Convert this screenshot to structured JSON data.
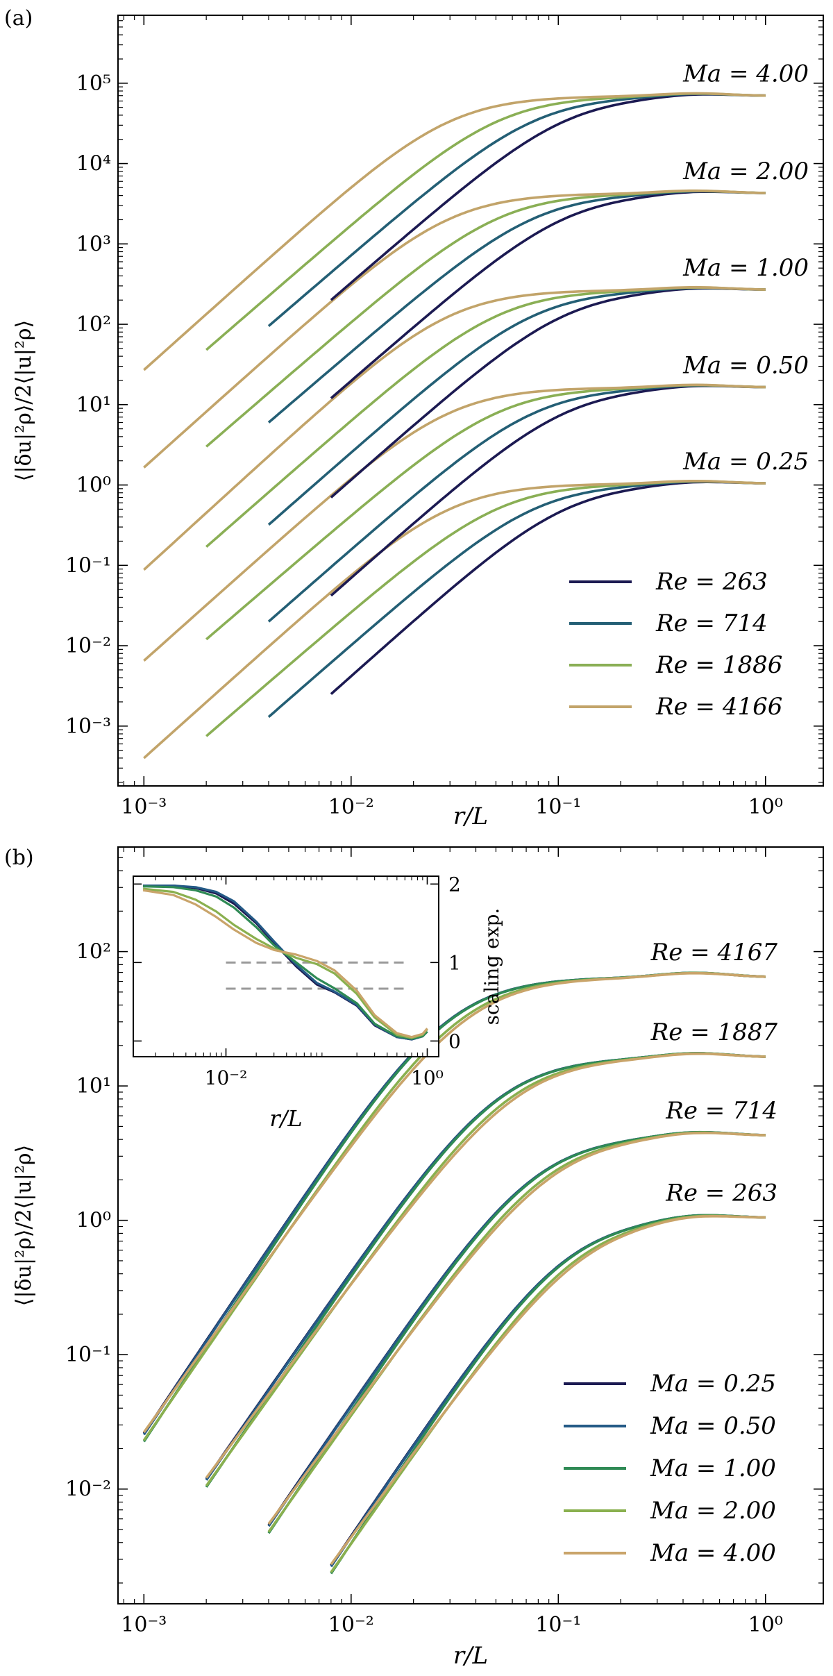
{
  "colors": {
    "c263": "#1c1a52",
    "c714": "#245f75",
    "c1886": "#8aaf55",
    "c4166": "#c2a46a",
    "ma025": "#1c1a52",
    "ma050": "#245a86",
    "ma100": "#2f8a55",
    "ma200": "#8ab04f",
    "ma400": "#c9a46a",
    "ref": "#9a9a9a"
  },
  "chart_data": [
    {
      "type": "line",
      "panel_label": "(a)",
      "xscale": "log",
      "yscale": "log",
      "xlabel": "r/L",
      "ylabel": "⟨|δu|²ρ⟩/2⟨|u|²ρ⟩",
      "xlim": [
        0.00075,
        1.9
      ],
      "ylim": [
        0.00018,
        700000
      ],
      "xticks": [
        {
          "v": 0.001,
          "label": "10⁻³"
        },
        {
          "v": 0.01,
          "label": "10⁻²"
        },
        {
          "v": 0.1,
          "label": "10⁻¹"
        },
        {
          "v": 1,
          "label": "10⁰"
        }
      ],
      "yticks": [
        {
          "v": 0.001,
          "label": "10⁻³"
        },
        {
          "v": 0.01,
          "label": "10⁻²"
        },
        {
          "v": 0.1,
          "label": "10⁻¹"
        },
        {
          "v": 1,
          "label": "10⁰"
        },
        {
          "v": 10,
          "label": "10¹"
        },
        {
          "v": 100,
          "label": "10²"
        },
        {
          "v": 1000,
          "label": "10³"
        },
        {
          "v": 10000,
          "label": "10⁴"
        },
        {
          "v": 100000,
          "label": "10⁵"
        }
      ],
      "group_labels": [
        {
          "text": "Ma = 4.00",
          "group": 4
        },
        {
          "text": "Ma = 2.00",
          "group": 3
        },
        {
          "text": "Ma = 1.00",
          "group": 2
        },
        {
          "text": "Ma = 0.50",
          "group": 1
        },
        {
          "text": "Ma = 0.25",
          "group": 0
        }
      ],
      "groups": [
        {
          "name": "Ma = 0.25",
          "plateau": 1.05,
          "curves": [
            {
              "re": "263",
              "rmin": 0.008,
              "ymin": 0.0025,
              "rc": 0.11,
              "color": "c263"
            },
            {
              "re": "714",
              "rmin": 0.004,
              "ymin": 0.0013,
              "rc": 0.078,
              "color": "c714"
            },
            {
              "re": "1886",
              "rmin": 0.002,
              "ymin": 0.00075,
              "rc": 0.052,
              "color": "c1886"
            },
            {
              "re": "4166",
              "rmin": 0.001,
              "ymin": 0.0004,
              "rc": 0.03,
              "color": "c4166"
            }
          ]
        },
        {
          "name": "Ma = 0.50",
          "plateau": 16.5,
          "curves": [
            {
              "re": "263",
              "rmin": 0.008,
              "ymin": 0.042,
              "rc": 0.11,
              "color": "c263"
            },
            {
              "re": "714",
              "rmin": 0.004,
              "ymin": 0.02,
              "rc": 0.078,
              "color": "c714"
            },
            {
              "re": "1886",
              "rmin": 0.002,
              "ymin": 0.012,
              "rc": 0.052,
              "color": "c1886"
            },
            {
              "re": "4166",
              "rmin": 0.001,
              "ymin": 0.0065,
              "rc": 0.03,
              "color": "c4166"
            }
          ]
        },
        {
          "name": "Ma = 1.00",
          "plateau": 270,
          "curves": [
            {
              "re": "263",
              "rmin": 0.008,
              "ymin": 0.7,
              "rc": 0.11,
              "color": "c263"
            },
            {
              "re": "714",
              "rmin": 0.004,
              "ymin": 0.32,
              "rc": 0.078,
              "color": "c714"
            },
            {
              "re": "1886",
              "rmin": 0.002,
              "ymin": 0.17,
              "rc": 0.052,
              "color": "c1886"
            },
            {
              "re": "4166",
              "rmin": 0.001,
              "ymin": 0.088,
              "rc": 0.03,
              "color": "c4166"
            }
          ]
        },
        {
          "name": "Ma = 2.00",
          "plateau": 4300,
          "curves": [
            {
              "re": "263",
              "rmin": 0.008,
              "ymin": 12,
              "rc": 0.11,
              "color": "c263"
            },
            {
              "re": "714",
              "rmin": 0.004,
              "ymin": 6,
              "rc": 0.078,
              "color": "c714"
            },
            {
              "re": "1886",
              "rmin": 0.002,
              "ymin": 3,
              "rc": 0.052,
              "color": "c1886"
            },
            {
              "re": "4166",
              "rmin": 0.001,
              "ymin": 1.65,
              "rc": 0.03,
              "color": "c4166"
            }
          ]
        },
        {
          "name": "Ma = 4.00",
          "plateau": 70000,
          "curves": [
            {
              "re": "263",
              "rmin": 0.008,
              "ymin": 200,
              "rc": 0.11,
              "color": "c263"
            },
            {
              "re": "714",
              "rmin": 0.004,
              "ymin": 95,
              "rc": 0.078,
              "color": "c714"
            },
            {
              "re": "1886",
              "rmin": 0.002,
              "ymin": 48,
              "rc": 0.052,
              "color": "c1886"
            },
            {
              "re": "4166",
              "rmin": 0.001,
              "ymin": 27,
              "rc": 0.03,
              "color": "c4166"
            }
          ]
        }
      ],
      "legend": {
        "position": "lower-right",
        "entries": [
          {
            "label": "Re = 263",
            "color": "c263"
          },
          {
            "label": "Re = 714",
            "color": "c714"
          },
          {
            "label": "Re = 1886",
            "color": "c1886"
          },
          {
            "label": "Re = 4166",
            "color": "c4166"
          }
        ]
      }
    },
    {
      "type": "line",
      "panel_label": "(b)",
      "xscale": "log",
      "yscale": "log",
      "xlabel": "r/L",
      "ylabel": "⟨|δu|²ρ⟩/2⟨|u|²ρ⟩",
      "xlim": [
        0.00075,
        1.9
      ],
      "ylim": [
        0.0014,
        600
      ],
      "xticks": [
        {
          "v": 0.001,
          "label": "10⁻³"
        },
        {
          "v": 0.01,
          "label": "10⁻²"
        },
        {
          "v": 0.1,
          "label": "10⁻¹"
        },
        {
          "v": 1,
          "label": "10⁰"
        }
      ],
      "yticks": [
        {
          "v": 0.01,
          "label": "10⁻²"
        },
        {
          "v": 0.1,
          "label": "10⁻¹"
        },
        {
          "v": 1,
          "label": "10⁰"
        },
        {
          "v": 10,
          "label": "10¹"
        },
        {
          "v": 100,
          "label": "10²"
        }
      ],
      "group_labels": [
        {
          "text": "Re = 4167",
          "group": 3
        },
        {
          "text": "Re = 1887",
          "group": 2
        },
        {
          "text": "Re = 714",
          "group": 1
        },
        {
          "text": "Re = 263",
          "group": 0
        }
      ],
      "groups": [
        {
          "name": "Re = 263",
          "plateau": 1.05,
          "rmin": 0.008,
          "ymin": 0.0025,
          "rc": 0.11
        },
        {
          "name": "Re = 714",
          "plateau": 4.3,
          "rmin": 0.004,
          "ymin": 0.005,
          "rc": 0.078
        },
        {
          "name": "Re = 1887",
          "plateau": 16.5,
          "rmin": 0.002,
          "ymin": 0.011,
          "rc": 0.052
        },
        {
          "name": "Re = 4167",
          "plateau": 65,
          "rmin": 0.001,
          "ymin": 0.024,
          "rc": 0.03
        }
      ],
      "ma_curves": [
        {
          "label": "Ma = 0.25",
          "color": "ma025",
          "yfactor": 1.08,
          "rshift": 1.0
        },
        {
          "label": "Ma = 0.50",
          "color": "ma050",
          "yfactor": 1.06,
          "rshift": 1.0
        },
        {
          "label": "Ma = 1.00",
          "color": "ma100",
          "yfactor": 0.94,
          "rshift": 1.0
        },
        {
          "label": "Ma = 2.00",
          "color": "ma200",
          "yfactor": 0.96,
          "rshift": 1.15
        },
        {
          "label": "Ma = 4.00",
          "color": "ma400",
          "yfactor": 1.1,
          "rshift": 1.25
        }
      ],
      "legend": {
        "position": "lower-right",
        "entries": [
          {
            "label": "Ma = 0.25",
            "color": "ma025"
          },
          {
            "label": "Ma = 0.50",
            "color": "ma050"
          },
          {
            "label": "Ma = 1.00",
            "color": "ma100"
          },
          {
            "label": "Ma = 2.00",
            "color": "ma200"
          },
          {
            "label": "Ma = 4.00",
            "color": "ma400"
          }
        ]
      },
      "inset": {
        "xscale": "log",
        "xlim": [
          0.0012,
          1.3
        ],
        "ylim": [
          -0.2,
          2.1
        ],
        "xlabel": "r/L",
        "ylabel": "scaling exp.",
        "xticks": [
          {
            "v": 0.01,
            "label": "10⁻²"
          },
          {
            "v": 1,
            "label": "10⁰"
          }
        ],
        "yticks": [
          {
            "v": 0,
            "label": "0"
          },
          {
            "v": 1,
            "label": "1"
          },
          {
            "v": 2,
            "label": "2"
          }
        ],
        "ref_lines": [
          1.0,
          0.667
        ],
        "series": [
          {
            "label": "Ma = 0.25",
            "color": "ma025",
            "x": [
              0.0015,
              0.003,
              0.005,
              0.008,
              0.012,
              0.02,
              0.03,
              0.05,
              0.08,
              0.12,
              0.2,
              0.3,
              0.5,
              0.7,
              0.9,
              1.0
            ],
            "y": [
              1.98,
              1.98,
              1.95,
              1.88,
              1.75,
              1.5,
              1.25,
              0.95,
              0.72,
              0.62,
              0.45,
              0.2,
              0.05,
              0.02,
              0.06,
              0.12
            ]
          },
          {
            "label": "Ma = 0.50",
            "color": "ma050",
            "x": [
              0.0015,
              0.003,
              0.005,
              0.008,
              0.012,
              0.02,
              0.03,
              0.05,
              0.08,
              0.12,
              0.2,
              0.3,
              0.5,
              0.7,
              0.9,
              1.0
            ],
            "y": [
              1.98,
              1.98,
              1.96,
              1.9,
              1.78,
              1.52,
              1.27,
              0.97,
              0.74,
              0.63,
              0.46,
              0.21,
              0.05,
              0.02,
              0.06,
              0.12
            ]
          },
          {
            "label": "Ma = 1.00",
            "color": "ma100",
            "x": [
              0.0015,
              0.003,
              0.005,
              0.008,
              0.012,
              0.02,
              0.03,
              0.05,
              0.08,
              0.12,
              0.2,
              0.3,
              0.5,
              0.7,
              0.9,
              1.0
            ],
            "y": [
              1.97,
              1.96,
              1.92,
              1.84,
              1.7,
              1.45,
              1.22,
              1.0,
              0.8,
              0.67,
              0.48,
              0.22,
              0.06,
              0.03,
              0.06,
              0.12
            ]
          },
          {
            "label": "Ma = 2.00",
            "color": "ma200",
            "x": [
              0.0015,
              0.003,
              0.005,
              0.008,
              0.012,
              0.02,
              0.03,
              0.05,
              0.08,
              0.12,
              0.2,
              0.3,
              0.5,
              0.7,
              0.9,
              1.0
            ],
            "y": [
              1.94,
              1.9,
              1.8,
              1.65,
              1.48,
              1.3,
              1.18,
              1.06,
              0.98,
              0.86,
              0.6,
              0.3,
              0.08,
              0.04,
              0.08,
              0.15
            ]
          },
          {
            "label": "Ma = 4.00",
            "color": "ma400",
            "x": [
              0.0015,
              0.003,
              0.005,
              0.008,
              0.012,
              0.02,
              0.03,
              0.05,
              0.08,
              0.12,
              0.2,
              0.3,
              0.5,
              0.7,
              0.9,
              1.0
            ],
            "y": [
              1.92,
              1.86,
              1.74,
              1.58,
              1.42,
              1.25,
              1.16,
              1.1,
              1.02,
              0.9,
              0.64,
              0.33,
              0.1,
              0.05,
              0.09,
              0.16
            ]
          }
        ]
      }
    }
  ]
}
